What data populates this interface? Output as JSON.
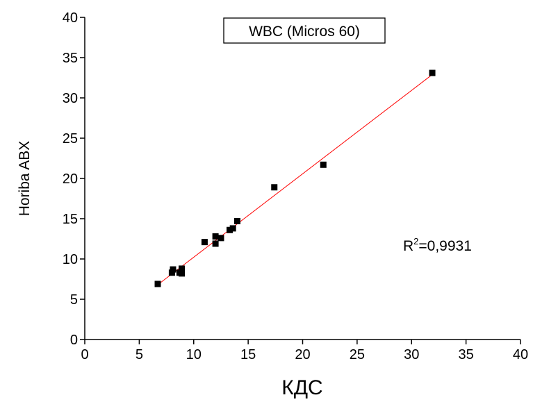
{
  "chart_data": {
    "type": "scatter",
    "title": "WBC  (Micros 60)",
    "x_label": "КДС",
    "y_label": "Horiba ABX",
    "annotation": {
      "base": "R",
      "sup": "2",
      "rest": "=0,9931"
    },
    "series": [
      {
        "name": "WBC",
        "color": "#000000",
        "x": [
          6.7,
          8.1,
          8.0,
          8.7,
          8.9,
          8.9,
          11.0,
          12.0,
          12.0,
          12.5,
          13.3,
          13.6,
          14.0,
          17.4,
          21.9,
          31.9
        ],
        "values": [
          6.9,
          8.7,
          8.3,
          8.3,
          8.8,
          8.2,
          12.1,
          12.8,
          11.9,
          12.6,
          13.6,
          13.8,
          14.7,
          18.9,
          21.7,
          33.1
        ]
      }
    ],
    "fit_line": {
      "color": "#ff0000",
      "x": [
        6.7,
        32.0
      ],
      "values": [
        6.8,
        33.0
      ]
    },
    "xlim": [
      0,
      40
    ],
    "xticks": [
      0,
      5,
      10,
      15,
      20,
      25,
      30,
      35,
      40
    ],
    "ylim": [
      0,
      40
    ],
    "yticks": [
      0,
      5,
      10,
      15,
      20,
      25,
      30,
      35,
      40
    ]
  }
}
